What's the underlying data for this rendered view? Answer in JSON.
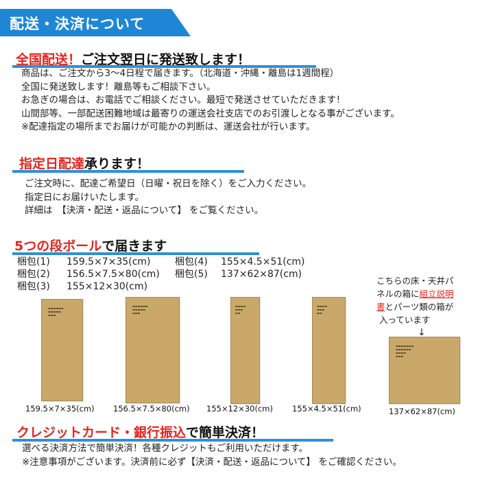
{
  "banner": {
    "title": "配送・決済について",
    "color": "#1f86d6"
  },
  "section1": {
    "heading_red": "全国配送！",
    "heading_black": "ご注文翌日に発送致します！",
    "lines": [
      "商品は、ご注文から3～4日程で届きます。（北海道・沖縄・離島は1週間程）",
      "全国に発送致します！離島等もご相談下さい。",
      "お急ぎの場合は、お電話でご相談ください。最短で発送させていただきます！",
      "山間部等、一部配送困難地域は最寄りの運送会社支店でのお引渡しとなる事がございます。",
      "※配達指定の場所までお届けが可能かの判断は、運送会社が行います。"
    ]
  },
  "section2": {
    "heading_red": "指定日配達",
    "heading_black": "承ります！",
    "lines": [
      "ご注文時に、配達ご希望日（日曜・祝日を除く）をご入力ください。",
      "指定日にお届けいたします。",
      "詳細は　【決済・配送・返品について】 をご覧ください。"
    ]
  },
  "section3": {
    "heading_red": "5つの段ボール",
    "heading_black": "で届きます",
    "packages": [
      {
        "label": "梱包(1)",
        "size": "159.5×7×35(cm)"
      },
      {
        "label": "梱包(4)",
        "size": "155×4.5×51(cm)"
      },
      {
        "label": "梱包(2)",
        "size": "156.5×7.5×80(cm)"
      },
      {
        "label": "梱包(5)",
        "size": "137×62×87(cm)"
      },
      {
        "label": "梱包(3)",
        "size": "155×12×30(cm)"
      }
    ],
    "box_captions": [
      "159.5×7×35(cm)",
      "156.5×7.5×80(cm)",
      "155×12×30(cm)",
      "155×4.5×51(cm)",
      "137×62×87(cm)"
    ],
    "note_lines": [
      "こちらの床・天井パ",
      "ネルの箱に",
      "組立説明",
      "書",
      "とパーツ類の箱が",
      "入っています",
      "↓"
    ],
    "box_color": "#c9a869"
  },
  "section4": {
    "heading_red": "クレジットカード・銀行振込",
    "heading_black": "で簡単決済！",
    "lines": [
      "選べる決済方法で簡単決済！各種クレジットもご利用いただけます。",
      "※注意事項がございます。決済前に必ず【決済・配送・返品について】 をご確認ください。"
    ]
  },
  "accent_colors": {
    "red": "#e8231d",
    "blue": "#2e8fd6"
  }
}
